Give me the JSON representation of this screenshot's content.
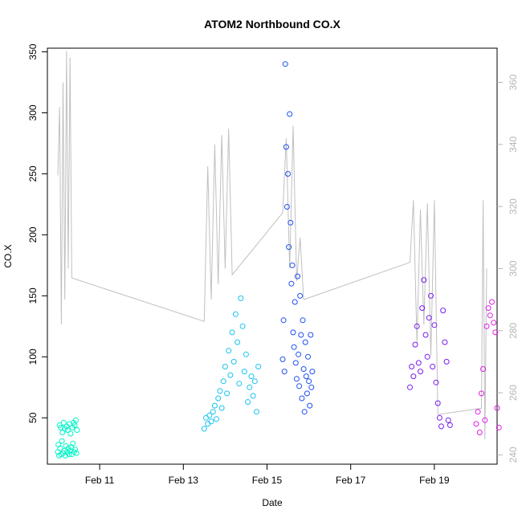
{
  "chart_data": {
    "type": "scatter",
    "title": "ATOM2 Northbound CO.X",
    "xlabel": "Date",
    "ylabel": "CO.X",
    "x_axis": {
      "type": "date",
      "range": [
        "2024-02-09 18:00",
        "2024-02-20 12:00"
      ],
      "ticks": [
        "2024-02-11",
        "2024-02-13",
        "2024-02-15",
        "2024-02-17",
        "2024-02-19"
      ],
      "tick_labels": [
        "Feb 11",
        "Feb 13",
        "Feb 15",
        "Feb 17",
        "Feb 19"
      ]
    },
    "y_axis_left": {
      "label": "CO.X",
      "range": [
        12,
        353
      ],
      "ticks": [
        50,
        100,
        150,
        200,
        250,
        300,
        350
      ]
    },
    "y_axis_right": {
      "label": "",
      "range": [
        237,
        371
      ],
      "ticks": [
        240,
        260,
        280,
        300,
        320,
        340,
        360
      ],
      "color": "#b5b5b5"
    },
    "grid": false,
    "legend": "none",
    "series": [
      {
        "kind": "scatter",
        "axis": "left",
        "color": "#00f5c8",
        "points": [
          [
            "2024-02-10 00:00",
            22
          ],
          [
            "2024-02-10 00:20",
            28
          ],
          [
            "2024-02-10 00:40",
            19
          ],
          [
            "2024-02-10 01:00",
            44
          ],
          [
            "2024-02-10 01:20",
            25
          ],
          [
            "2024-02-10 01:40",
            42
          ],
          [
            "2024-02-10 02:00",
            20
          ],
          [
            "2024-02-10 02:20",
            31
          ],
          [
            "2024-02-10 02:40",
            38
          ],
          [
            "2024-02-10 03:00",
            21
          ],
          [
            "2024-02-10 03:20",
            46
          ],
          [
            "2024-02-10 03:40",
            23
          ],
          [
            "2024-02-10 04:00",
            41
          ],
          [
            "2024-02-10 04:20",
            19
          ],
          [
            "2024-02-10 04:40",
            27
          ],
          [
            "2024-02-10 05:00",
            43
          ],
          [
            "2024-02-10 05:20",
            22
          ],
          [
            "2024-02-10 05:40",
            40
          ],
          [
            "2024-02-10 06:00",
            25
          ],
          [
            "2024-02-10 06:20",
            20
          ],
          [
            "2024-02-10 06:40",
            45
          ],
          [
            "2024-02-10 07:00",
            23
          ],
          [
            "2024-02-10 07:20",
            37
          ],
          [
            "2024-02-10 07:40",
            26
          ],
          [
            "2024-02-10 08:00",
            20
          ],
          [
            "2024-02-10 08:20",
            42
          ],
          [
            "2024-02-10 08:40",
            29
          ],
          [
            "2024-02-10 09:00",
            46
          ],
          [
            "2024-02-10 09:20",
            22
          ],
          [
            "2024-02-10 09:40",
            44
          ],
          [
            "2024-02-10 10:00",
            24
          ],
          [
            "2024-02-10 10:20",
            48
          ],
          [
            "2024-02-10 10:40",
            21
          ],
          [
            "2024-02-10 11:00",
            40
          ]
        ]
      },
      {
        "kind": "scatter",
        "axis": "left",
        "color": "#18c4f0",
        "points": [
          [
            "2024-02-13 12:00",
            41
          ],
          [
            "2024-02-13 13:00",
            50
          ],
          [
            "2024-02-13 14:00",
            45
          ],
          [
            "2024-02-13 15:00",
            52
          ],
          [
            "2024-02-13 16:00",
            47
          ],
          [
            "2024-02-13 17:00",
            55
          ],
          [
            "2024-02-13 18:00",
            60
          ],
          [
            "2024-02-13 19:00",
            49
          ],
          [
            "2024-02-13 20:00",
            66
          ],
          [
            "2024-02-13 21:00",
            72
          ],
          [
            "2024-02-13 22:00",
            58
          ],
          [
            "2024-02-13 23:00",
            80
          ],
          [
            "2024-02-14 00:00",
            92
          ],
          [
            "2024-02-14 01:00",
            70
          ],
          [
            "2024-02-14 02:00",
            105
          ],
          [
            "2024-02-14 03:00",
            85
          ],
          [
            "2024-02-14 04:00",
            120
          ],
          [
            "2024-02-14 05:00",
            96
          ],
          [
            "2024-02-14 06:00",
            135
          ],
          [
            "2024-02-14 07:00",
            112
          ],
          [
            "2024-02-14 08:00",
            78
          ],
          [
            "2024-02-14 09:00",
            148
          ],
          [
            "2024-02-14 10:00",
            125
          ],
          [
            "2024-02-14 11:00",
            88
          ],
          [
            "2024-02-14 12:00",
            102
          ],
          [
            "2024-02-14 13:00",
            63
          ],
          [
            "2024-02-14 14:00",
            75
          ],
          [
            "2024-02-14 15:00",
            84
          ],
          [
            "2024-02-14 16:00",
            68
          ],
          [
            "2024-02-14 17:00",
            80
          ],
          [
            "2024-02-14 18:00",
            55
          ],
          [
            "2024-02-14 19:00",
            92
          ]
        ]
      },
      {
        "kind": "scatter",
        "axis": "left",
        "color": "#1e50f0",
        "points": [
          [
            "2024-02-15 09:00",
            98
          ],
          [
            "2024-02-15 09:30",
            130
          ],
          [
            "2024-02-15 10:00",
            88
          ],
          [
            "2024-02-15 10:30",
            340
          ],
          [
            "2024-02-15 11:00",
            272
          ],
          [
            "2024-02-15 11:30",
            223
          ],
          [
            "2024-02-15 12:00",
            250
          ],
          [
            "2024-02-15 12:30",
            190
          ],
          [
            "2024-02-15 13:00",
            299
          ],
          [
            "2024-02-15 13:30",
            210
          ],
          [
            "2024-02-15 14:00",
            160
          ],
          [
            "2024-02-15 14:30",
            175
          ],
          [
            "2024-02-15 15:00",
            120
          ],
          [
            "2024-02-15 15:30",
            108
          ],
          [
            "2024-02-15 16:00",
            145
          ],
          [
            "2024-02-15 16:30",
            95
          ],
          [
            "2024-02-15 17:00",
            82
          ],
          [
            "2024-02-15 17:30",
            166
          ],
          [
            "2024-02-15 18:00",
            102
          ],
          [
            "2024-02-15 18:30",
            76
          ],
          [
            "2024-02-15 19:00",
            150
          ],
          [
            "2024-02-15 19:30",
            118
          ],
          [
            "2024-02-15 20:00",
            66
          ],
          [
            "2024-02-15 20:30",
            130
          ],
          [
            "2024-02-15 21:00",
            90
          ],
          [
            "2024-02-15 21:30",
            55
          ],
          [
            "2024-02-15 22:00",
            112
          ],
          [
            "2024-02-15 22:30",
            84
          ],
          [
            "2024-02-15 23:00",
            70
          ],
          [
            "2024-02-15 23:30",
            100
          ],
          [
            "2024-02-16 00:00",
            80
          ],
          [
            "2024-02-16 00:30",
            60
          ],
          [
            "2024-02-16 01:00",
            118
          ],
          [
            "2024-02-16 01:30",
            75
          ],
          [
            "2024-02-16 02:00",
            88
          ]
        ]
      },
      {
        "kind": "scatter",
        "axis": "left",
        "color": "#7a1ef0",
        "points": [
          [
            "2024-02-18 10:00",
            75
          ],
          [
            "2024-02-18 11:00",
            92
          ],
          [
            "2024-02-18 12:00",
            84
          ],
          [
            "2024-02-18 13:00",
            110
          ],
          [
            "2024-02-18 14:00",
            125
          ],
          [
            "2024-02-18 15:00",
            95
          ],
          [
            "2024-02-18 16:00",
            88
          ],
          [
            "2024-02-18 17:00",
            140
          ],
          [
            "2024-02-18 18:00",
            163
          ],
          [
            "2024-02-18 19:00",
            118
          ],
          [
            "2024-02-18 20:00",
            100
          ],
          [
            "2024-02-18 21:00",
            132
          ],
          [
            "2024-02-18 22:00",
            150
          ],
          [
            "2024-02-18 23:00",
            92
          ],
          [
            "2024-02-19 00:00",
            126
          ],
          [
            "2024-02-19 01:00",
            79
          ],
          [
            "2024-02-19 02:00",
            62
          ],
          [
            "2024-02-19 03:00",
            50
          ],
          [
            "2024-02-19 04:00",
            43
          ],
          [
            "2024-02-19 05:00",
            138
          ],
          [
            "2024-02-19 06:00",
            112
          ],
          [
            "2024-02-19 07:00",
            96
          ],
          [
            "2024-02-19 08:00",
            48
          ],
          [
            "2024-02-19 09:00",
            44
          ]
        ]
      },
      {
        "kind": "scatter",
        "axis": "left",
        "color": "#e01ee6",
        "points": [
          [
            "2024-02-20 00:00",
            45
          ],
          [
            "2024-02-20 01:00",
            55
          ],
          [
            "2024-02-20 02:00",
            38
          ],
          [
            "2024-02-20 03:00",
            70
          ],
          [
            "2024-02-20 04:00",
            90
          ],
          [
            "2024-02-20 05:00",
            48
          ],
          [
            "2024-02-20 06:00",
            125
          ],
          [
            "2024-02-20 07:00",
            140
          ],
          [
            "2024-02-20 08:00",
            134
          ],
          [
            "2024-02-20 09:00",
            145
          ],
          [
            "2024-02-20 10:00",
            128
          ],
          [
            "2024-02-20 11:00",
            120
          ],
          [
            "2024-02-20 12:00",
            58
          ],
          [
            "2024-02-20 13:00",
            42
          ]
        ]
      },
      {
        "kind": "line",
        "axis": "right",
        "color": "#c0c0c0",
        "points": [
          [
            "2024-02-10 00:00",
            330
          ],
          [
            "2024-02-10 01:00",
            352
          ],
          [
            "2024-02-10 02:00",
            282
          ],
          [
            "2024-02-10 03:00",
            360
          ],
          [
            "2024-02-10 04:00",
            290
          ],
          [
            "2024-02-10 05:00",
            370
          ],
          [
            "2024-02-10 06:00",
            300
          ],
          [
            "2024-02-10 07:00",
            368
          ],
          [
            "2024-02-10 08:00",
            297
          ],
          [
            "2024-02-13 12:00",
            283
          ],
          [
            "2024-02-13 14:00",
            333
          ],
          [
            "2024-02-13 16:00",
            290
          ],
          [
            "2024-02-13 18:00",
            340
          ],
          [
            "2024-02-13 20:00",
            295
          ],
          [
            "2024-02-13 22:00",
            343
          ],
          [
            "2024-02-14 00:00",
            300
          ],
          [
            "2024-02-14 02:00",
            345
          ],
          [
            "2024-02-14 04:00",
            298
          ],
          [
            "2024-02-15 09:00",
            318
          ],
          [
            "2024-02-15 11:00",
            342
          ],
          [
            "2024-02-15 13:00",
            300
          ],
          [
            "2024-02-15 15:00",
            346
          ],
          [
            "2024-02-15 17:00",
            296
          ],
          [
            "2024-02-15 19:00",
            310
          ],
          [
            "2024-02-15 21:00",
            290
          ],
          [
            "2024-02-18 10:00",
            302
          ],
          [
            "2024-02-18 12:00",
            322
          ],
          [
            "2024-02-18 14:00",
            276
          ],
          [
            "2024-02-18 16:00",
            319
          ],
          [
            "2024-02-18 18:00",
            282
          ],
          [
            "2024-02-18 20:00",
            321
          ],
          [
            "2024-02-18 22:00",
            272
          ],
          [
            "2024-02-19 00:00",
            322
          ],
          [
            "2024-02-19 02:00",
            253
          ],
          [
            "2024-02-20 03:00",
            255
          ],
          [
            "2024-02-20 04:00",
            322
          ],
          [
            "2024-02-20 05:00",
            245
          ],
          [
            "2024-02-20 06:00",
            300
          ]
        ]
      }
    ]
  }
}
